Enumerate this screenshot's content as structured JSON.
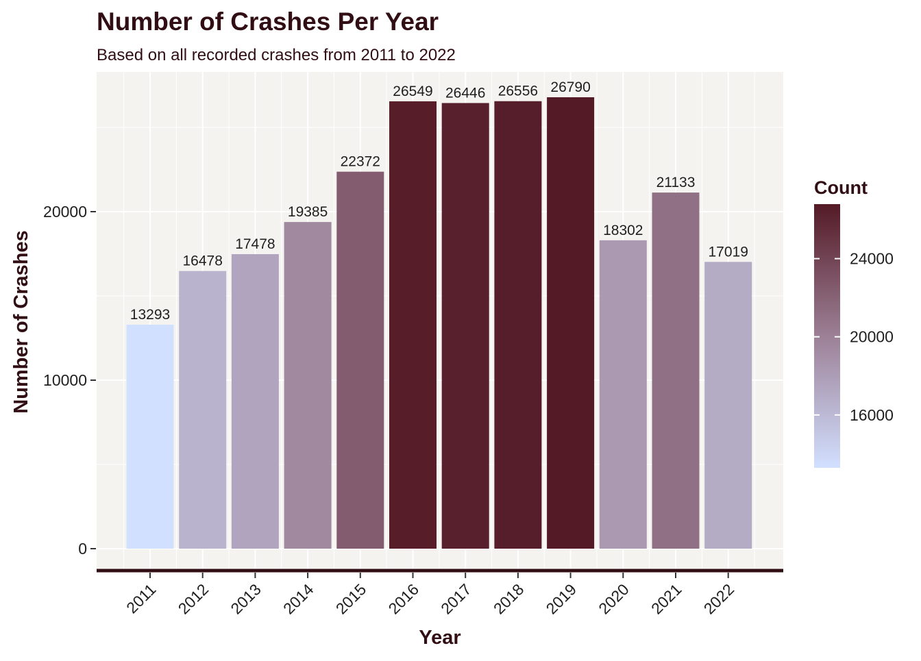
{
  "chart_data": {
    "type": "bar",
    "title": "Number of Crashes Per Year",
    "subtitle": "Based on all recorded crashes from 2011 to 2022",
    "xlabel": "Year",
    "ylabel": "Number of Crashes",
    "categories": [
      "2011",
      "2012",
      "2013",
      "2014",
      "2015",
      "2016",
      "2017",
      "2018",
      "2019",
      "2020",
      "2021",
      "2022"
    ],
    "values": [
      13293,
      16478,
      17478,
      19385,
      22372,
      26549,
      26446,
      26556,
      26790,
      18302,
      21133,
      17019
    ],
    "ylim": [
      0,
      28100
    ],
    "y_ticks": [
      0,
      10000,
      20000
    ],
    "grid": true,
    "legend": {
      "title": "Count",
      "position": "right",
      "ticks": [
        16000,
        20000,
        24000
      ],
      "range": [
        13293,
        26790
      ],
      "color_low": "#d2e0ff",
      "color_mid": "#9c8096",
      "color_high": "#541a26"
    },
    "colors": {
      "panel_background": "#f4f3f0",
      "grid": "#ffffff",
      "title": "#300e14",
      "axis_line": "#300e14",
      "tick_label": "#1f1f1f"
    }
  }
}
